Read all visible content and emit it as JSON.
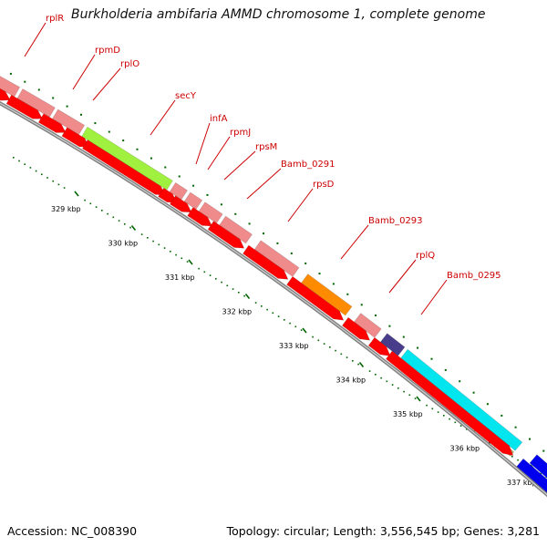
{
  "title": "Burkholderia ambifaria AMMD chromosome 1, complete genome",
  "footer": {
    "accession": "Accession: NC_008390",
    "topology": "Topology: circular;",
    "length": "Length: 3,556,545 bp;",
    "genes": "Genes: 3,281"
  },
  "colors": {
    "ribosomal": "#f08b8b",
    "cds": "#ff0000",
    "secY": "#a0f040",
    "rpsD_operon": "#ff8c00",
    "rplQ_neighbor": "#483d8b",
    "cyan": "#00e5ee",
    "khaki": "#bdb76b",
    "blue": "#0000ee",
    "backbone": "#808080",
    "tick": "#006400",
    "label_text": "#cc0000"
  },
  "gene_labels": [
    "rplR",
    "rpmD",
    "rplO",
    "secY",
    "infA",
    "rpmJ",
    "rpsM",
    "Bamb_0291",
    "rpsD",
    "Bamb_0293",
    "rplQ",
    "Bamb_0295"
  ],
  "ticks": [
    "329 kbp",
    "330 kbp",
    "331 kbp",
    "332 kbp",
    "333 kbp",
    "334 kbp",
    "335 kbp",
    "336 kbp",
    "337 kbp"
  ]
}
